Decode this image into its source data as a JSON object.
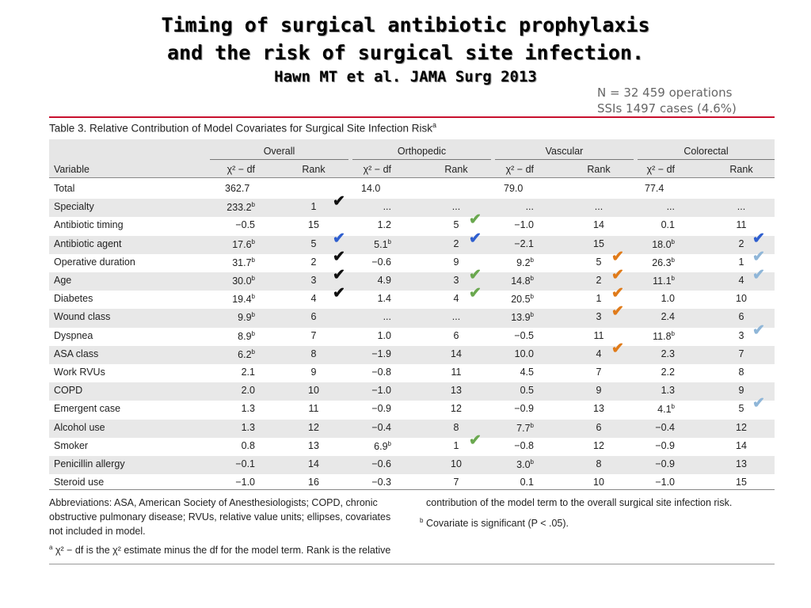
{
  "slide": {
    "title_line1": "Timing of surgical antibiotic prophylaxis",
    "title_line2": "and the risk of surgical site infection.",
    "citation": "Hawn MT et al. JAMA Surg 2013",
    "stat_ops": "N = 32 459 operations",
    "stat_ssi": "SSIs 1497 cases (4.6%)"
  },
  "table": {
    "caption": "Table 3. Relative Contribution of Model Covariates for Surgical Site Infection Risk",
    "caption_sup": "a",
    "groups": [
      "Overall",
      "Orthopedic",
      "Vascular",
      "Colorectal"
    ],
    "variable_header": "Variable",
    "chi_header": "χ² − df",
    "rank_header": "Rank",
    "rows": [
      {
        "var": "Total",
        "cells": [
          [
            "362.7",
            ""
          ],
          [
            "14.0",
            ""
          ],
          [
            "79.0",
            ""
          ],
          [
            "77.4",
            ""
          ]
        ]
      },
      {
        "var": "Specialty",
        "cells": [
          [
            "233.2b",
            "1"
          ],
          [
            "...",
            "..."
          ],
          [
            "...",
            "..."
          ],
          [
            "...",
            "..."
          ]
        ]
      },
      {
        "var": "Antibiotic timing",
        "cells": [
          [
            "−0.5",
            "15"
          ],
          [
            "1.2",
            "5"
          ],
          [
            "−1.0",
            "14"
          ],
          [
            "0.1",
            "11"
          ]
        ]
      },
      {
        "var": "Antibiotic agent",
        "cells": [
          [
            "17.6b",
            "5"
          ],
          [
            "5.1b",
            "2"
          ],
          [
            "−2.1",
            "15"
          ],
          [
            "18.0b",
            "2"
          ]
        ]
      },
      {
        "var": "Operative duration",
        "cells": [
          [
            "31.7b",
            "2"
          ],
          [
            "−0.6",
            "9"
          ],
          [
            "9.2b",
            "5"
          ],
          [
            "26.3b",
            "1"
          ]
        ]
      },
      {
        "var": "Age",
        "cells": [
          [
            "30.0b",
            "3"
          ],
          [
            "4.9",
            "3"
          ],
          [
            "14.8b",
            "2"
          ],
          [
            "11.1b",
            "4"
          ]
        ]
      },
      {
        "var": "Diabetes",
        "cells": [
          [
            "19.4b",
            "4"
          ],
          [
            "1.4",
            "4"
          ],
          [
            "20.5b",
            "1"
          ],
          [
            "1.0",
            "10"
          ]
        ]
      },
      {
        "var": "Wound class",
        "cells": [
          [
            "9.9b",
            "6"
          ],
          [
            "...",
            "..."
          ],
          [
            "13.9b",
            "3"
          ],
          [
            "2.4",
            "6"
          ]
        ]
      },
      {
        "var": "Dyspnea",
        "cells": [
          [
            "8.9b",
            "7"
          ],
          [
            "1.0",
            "6"
          ],
          [
            "−0.5",
            "11"
          ],
          [
            "11.8b",
            "3"
          ]
        ]
      },
      {
        "var": "ASA class",
        "cells": [
          [
            "6.2b",
            "8"
          ],
          [
            "−1.9",
            "14"
          ],
          [
            "10.0",
            "4"
          ],
          [
            "2.3",
            "7"
          ]
        ]
      },
      {
        "var": "Work RVUs",
        "cells": [
          [
            "2.1",
            "9"
          ],
          [
            "−0.8",
            "11"
          ],
          [
            "4.5",
            "7"
          ],
          [
            "2.2",
            "8"
          ]
        ]
      },
      {
        "var": "COPD",
        "cells": [
          [
            "2.0",
            "10"
          ],
          [
            "−1.0",
            "13"
          ],
          [
            "0.5",
            "9"
          ],
          [
            "1.3",
            "9"
          ]
        ]
      },
      {
        "var": "Emergent case",
        "cells": [
          [
            "1.3",
            "11"
          ],
          [
            "−0.9",
            "12"
          ],
          [
            "−0.9",
            "13"
          ],
          [
            "4.1b",
            "5"
          ]
        ]
      },
      {
        "var": "Alcohol use",
        "cells": [
          [
            "1.3",
            "12"
          ],
          [
            "−0.4",
            "8"
          ],
          [
            "7.7b",
            "6"
          ],
          [
            "−0.4",
            "12"
          ]
        ]
      },
      {
        "var": "Smoker",
        "cells": [
          [
            "0.8",
            "13"
          ],
          [
            "6.9b",
            "1"
          ],
          [
            "−0.8",
            "12"
          ],
          [
            "−0.9",
            "14"
          ]
        ]
      },
      {
        "var": "Penicillin allergy",
        "cells": [
          [
            "−0.1",
            "14"
          ],
          [
            "−0.6",
            "10"
          ],
          [
            "3.0b",
            "8"
          ],
          [
            "−0.9",
            "13"
          ]
        ]
      },
      {
        "var": "Steroid use",
        "cells": [
          [
            "−1.0",
            "16"
          ],
          [
            "−0.3",
            "7"
          ],
          [
            "0.1",
            "10"
          ],
          [
            "−1.0",
            "15"
          ]
        ]
      }
    ],
    "checkmarks": [
      {
        "row": 1,
        "group": 0,
        "color": "#111111"
      },
      {
        "row": 3,
        "group": 0,
        "color": "#2f5fcf"
      },
      {
        "row": 4,
        "group": 0,
        "color": "#111111"
      },
      {
        "row": 5,
        "group": 0,
        "color": "#111111"
      },
      {
        "row": 6,
        "group": 0,
        "color": "#111111"
      },
      {
        "row": 2,
        "group": 1,
        "color": "#6aa84f"
      },
      {
        "row": 3,
        "group": 1,
        "color": "#2f5fcf"
      },
      {
        "row": 5,
        "group": 1,
        "color": "#6aa84f"
      },
      {
        "row": 6,
        "group": 1,
        "color": "#6aa84f"
      },
      {
        "row": 14,
        "group": 1,
        "color": "#6aa84f"
      },
      {
        "row": 4,
        "group": 2,
        "color": "#e07b1a"
      },
      {
        "row": 5,
        "group": 2,
        "color": "#e07b1a"
      },
      {
        "row": 6,
        "group": 2,
        "color": "#e07b1a"
      },
      {
        "row": 7,
        "group": 2,
        "color": "#e07b1a"
      },
      {
        "row": 9,
        "group": 2,
        "color": "#e07b1a"
      },
      {
        "row": 3,
        "group": 3,
        "color": "#2f5fcf"
      },
      {
        "row": 4,
        "group": 3,
        "color": "#8fb6d8"
      },
      {
        "row": 5,
        "group": 3,
        "color": "#8fb6d8"
      },
      {
        "row": 8,
        "group": 3,
        "color": "#8fb6d8"
      },
      {
        "row": 12,
        "group": 3,
        "color": "#8fb6d8"
      }
    ],
    "check_glyph": "✔",
    "footnotes": {
      "abbrev": "Abbreviations: ASA, American Society of Anesthesiologists; COPD, chronic obstructive pulmonary disease; RVUs, relative value units; ellipses, covariates not included in model.",
      "note_a_prefix": "a",
      "note_a": "χ² − df is the χ² estimate minus the df for the model term. Rank is the relative",
      "note_a_cont": "contribution of the model term to the overall surgical site infection risk.",
      "note_b_prefix": "b",
      "note_b": "Covariate is significant (P < .05)."
    }
  }
}
